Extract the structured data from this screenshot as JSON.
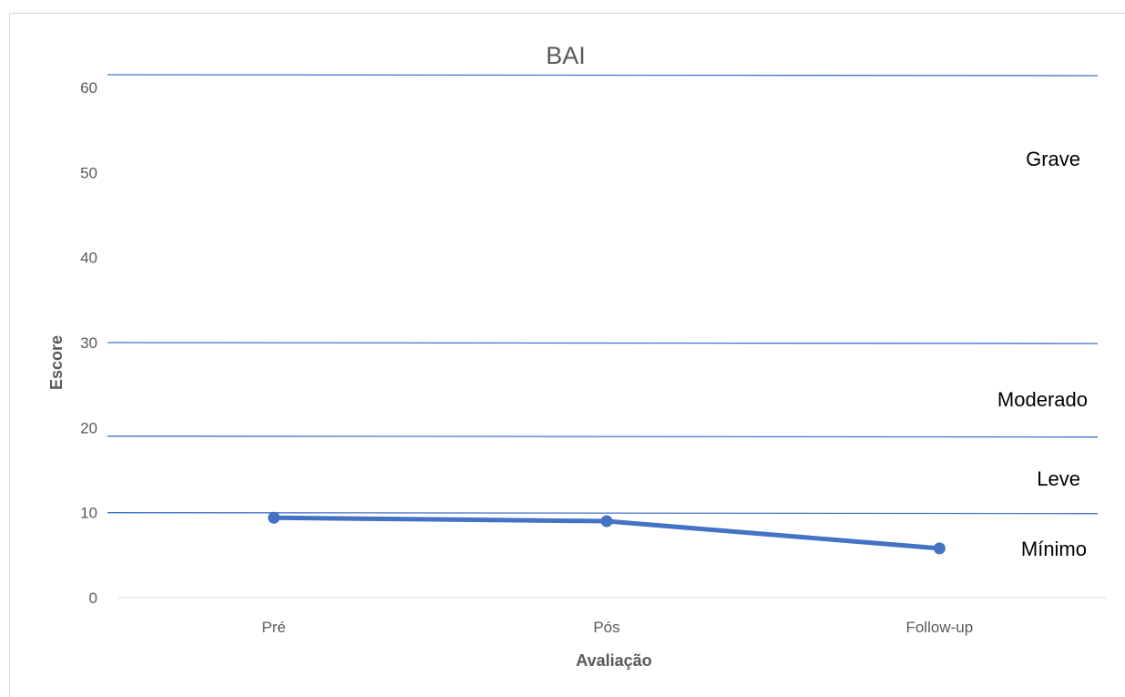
{
  "chart_data": {
    "type": "line",
    "title": "BAI",
    "xlabel": "Avaliação",
    "ylabel": "Escore",
    "categories": [
      "Pré",
      "Pós",
      "Follow-up"
    ],
    "series": [
      {
        "values": [
          9.4,
          9.0,
          5.8
        ],
        "color": "#4472c4"
      }
    ],
    "ylim": [
      0,
      60
    ],
    "yticks": [
      0,
      10,
      20,
      30,
      40,
      50,
      60
    ],
    "grid": false,
    "reference_lines": [
      {
        "value": 10,
        "color": "#4472c4"
      },
      {
        "value": 19,
        "color": "#4472c4"
      },
      {
        "value": 30,
        "color": "#4472c4"
      },
      {
        "value": 61.5,
        "color": "#4472c4"
      }
    ],
    "zone_labels": [
      "Grave",
      "Moderado",
      "Leve",
      "Mínimo"
    ]
  }
}
